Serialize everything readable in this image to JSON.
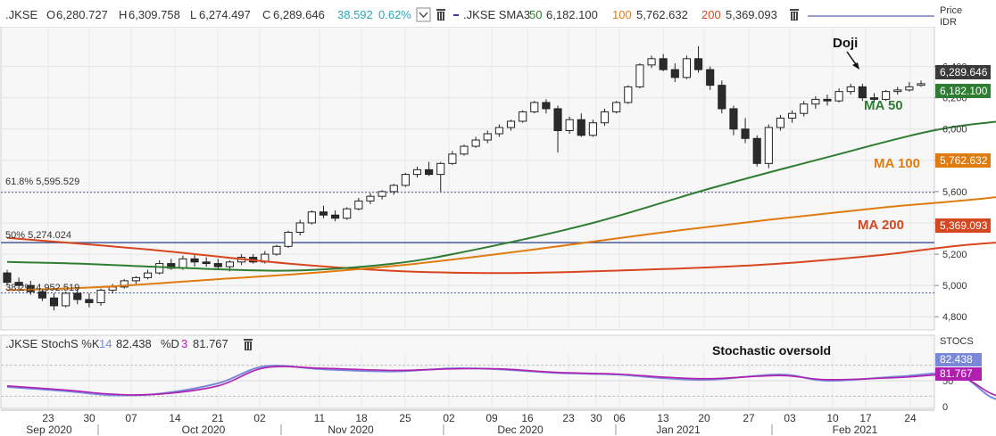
{
  "price_header": {
    "symbol": ".JKSE",
    "o_label": "O",
    "o_value": "6,280.727",
    "h_label": "H",
    "h_value": "6,309.758",
    "l_label": "L",
    "l_value": "6,274.497",
    "c_label": "C",
    "c_value": "6,289.646",
    "change": "38.592",
    "change_pct": "0.62%",
    "sma_label": ".JKSE SMA3",
    "sma50_period": "50",
    "sma50_value": "6,182.100",
    "sma100_period": "100",
    "sma100_value": "5,762.632",
    "sma200_period": "200",
    "sma200_value": "5,369.093"
  },
  "stoch_header": {
    "label": ".JKSE StochS %K",
    "k_period": "14",
    "k_value": "82.438",
    "d_label": "%D",
    "d_period": "3",
    "d_value": "81.767"
  },
  "axis": {
    "price_title": "Price",
    "price_unit": "IDR",
    "price_ticks": [
      "6,400",
      "6,200",
      "6,000",
      "5,800",
      "5,600",
      "5,400",
      "5,200",
      "5,000",
      "4,800"
    ],
    "stoch_title": "STOCS",
    "stoch_ticks": [
      "50",
      "0"
    ],
    "day_ticks": [
      "23",
      "30",
      "07",
      "14",
      "21",
      "02",
      "11",
      "18",
      "25",
      "02",
      "09",
      "16",
      "23",
      "30",
      "06",
      "13",
      "20",
      "27",
      "03",
      "10",
      "17",
      "24"
    ],
    "month_ticks": [
      "Sep 2020",
      "Oct 2020",
      "Nov 2020",
      "Dec 2020",
      "Jan 2021",
      "Feb 2021"
    ]
  },
  "value_tags": {
    "close": "6,289.646",
    "ma50": "6,182.100",
    "ma100": "5,762.632",
    "ma200": "5,369.093",
    "k": "82.438",
    "d": "81.767"
  },
  "annotations": {
    "doji": "Doji",
    "ma50": "MA 50",
    "ma100": "MA 100",
    "ma200": "MA 200",
    "stoch": "Stochastic oversold",
    "fib618": "61.8%  5,595.529",
    "fib50": "50%   5,274.024",
    "fib382": "38.2%  4,952.519"
  },
  "colors": {
    "ma50": "#2e7d32",
    "ma100": "#e07b10",
    "ma200": "#d6471f",
    "fib": "#4a5a9a",
    "stochK": "#7b88d9",
    "stochD": "#b01fb0",
    "close_tag": "#3a3a3a",
    "change": "#2aa7b5"
  },
  "chart_data": {
    "type": "candlestick",
    "y_range": [
      4750,
      6620
    ],
    "stoch_range": [
      0,
      100
    ],
    "fib_levels": [
      5595.529,
      5274.024,
      4952.519
    ],
    "candles": [
      [
        5080,
        5100,
        5000,
        5020
      ],
      [
        5020,
        5050,
        4960,
        5000
      ],
      [
        5000,
        5030,
        4940,
        4960
      ],
      [
        4960,
        4980,
        4900,
        4920
      ],
      [
        4920,
        4950,
        4840,
        4870
      ],
      [
        4870,
        4960,
        4860,
        4950
      ],
      [
        4950,
        4980,
        4880,
        4910
      ],
      [
        4910,
        4950,
        4860,
        4890
      ],
      [
        4890,
        4980,
        4870,
        4970
      ],
      [
        4970,
        5010,
        4950,
        4990
      ],
      [
        4990,
        5040,
        4980,
        5030
      ],
      [
        5030,
        5060,
        5010,
        5050
      ],
      [
        5050,
        5100,
        5040,
        5080
      ],
      [
        5080,
        5160,
        5070,
        5140
      ],
      [
        5140,
        5170,
        5100,
        5110
      ],
      [
        5110,
        5190,
        5100,
        5170
      ],
      [
        5170,
        5200,
        5120,
        5150
      ],
      [
        5150,
        5180,
        5120,
        5140
      ],
      [
        5140,
        5170,
        5100,
        5120
      ],
      [
        5120,
        5160,
        5090,
        5150
      ],
      [
        5150,
        5200,
        5130,
        5180
      ],
      [
        5180,
        5200,
        5140,
        5150
      ],
      [
        5150,
        5220,
        5140,
        5200
      ],
      [
        5200,
        5260,
        5190,
        5250
      ],
      [
        5250,
        5350,
        5240,
        5340
      ],
      [
        5340,
        5420,
        5320,
        5400
      ],
      [
        5400,
        5480,
        5390,
        5470
      ],
      [
        5470,
        5510,
        5430,
        5450
      ],
      [
        5450,
        5480,
        5410,
        5430
      ],
      [
        5430,
        5500,
        5420,
        5490
      ],
      [
        5490,
        5560,
        5480,
        5540
      ],
      [
        5540,
        5590,
        5520,
        5570
      ],
      [
        5570,
        5610,
        5550,
        5600
      ],
      [
        5600,
        5650,
        5580,
        5640
      ],
      [
        5640,
        5720,
        5630,
        5710
      ],
      [
        5710,
        5760,
        5690,
        5740
      ],
      [
        5740,
        5790,
        5700,
        5710
      ],
      [
        5710,
        5790,
        5600,
        5780
      ],
      [
        5780,
        5860,
        5770,
        5840
      ],
      [
        5840,
        5900,
        5830,
        5890
      ],
      [
        5890,
        5950,
        5880,
        5930
      ],
      [
        5930,
        5990,
        5910,
        5970
      ],
      [
        5970,
        6030,
        5950,
        6010
      ],
      [
        6010,
        6060,
        5990,
        6050
      ],
      [
        6050,
        6120,
        6040,
        6110
      ],
      [
        6110,
        6180,
        6100,
        6170
      ],
      [
        6170,
        6190,
        6100,
        6130
      ],
      [
        6130,
        6150,
        5850,
        5990
      ],
      [
        5990,
        6080,
        5970,
        6060
      ],
      [
        6060,
        6100,
        5950,
        5960
      ],
      [
        5960,
        6060,
        5950,
        6040
      ],
      [
        6040,
        6130,
        6020,
        6110
      ],
      [
        6110,
        6180,
        6100,
        6170
      ],
      [
        6170,
        6280,
        6160,
        6270
      ],
      [
        6270,
        6420,
        6260,
        6410
      ],
      [
        6410,
        6470,
        6390,
        6450
      ],
      [
        6450,
        6480,
        6370,
        6380
      ],
      [
        6380,
        6420,
        6300,
        6330
      ],
      [
        6330,
        6470,
        6320,
        6450
      ],
      [
        6450,
        6530,
        6360,
        6380
      ],
      [
        6380,
        6400,
        6250,
        6280
      ],
      [
        6280,
        6310,
        6100,
        6130
      ],
      [
        6130,
        6150,
        5960,
        6000
      ],
      [
        6000,
        6070,
        5910,
        5940
      ],
      [
        5940,
        5960,
        5760,
        5780
      ],
      [
        5780,
        6030,
        5750,
        6010
      ],
      [
        6010,
        6090,
        5990,
        6070
      ],
      [
        6070,
        6120,
        6040,
        6100
      ],
      [
        6100,
        6180,
        6080,
        6160
      ],
      [
        6160,
        6210,
        6130,
        6190
      ],
      [
        6190,
        6220,
        6150,
        6180
      ],
      [
        6180,
        6260,
        6170,
        6240
      ],
      [
        6240,
        6290,
        6220,
        6270
      ],
      [
        6270,
        6290,
        6180,
        6200
      ],
      [
        6200,
        6230,
        6170,
        6190
      ],
      [
        6190,
        6250,
        6180,
        6240
      ],
      [
        6240,
        6270,
        6220,
        6250
      ],
      [
        6250,
        6300,
        6240,
        6270
      ],
      [
        6280,
        6310,
        6270,
        6290
      ]
    ],
    "ma50": [
      [
        0,
        5150
      ],
      [
        6,
        5140
      ],
      [
        14,
        5115
      ],
      [
        24,
        5095
      ],
      [
        33,
        5140
      ],
      [
        40,
        5230
      ],
      [
        50,
        5400
      ],
      [
        60,
        5620
      ],
      [
        70,
        5820
      ],
      [
        79,
        5990
      ],
      [
        86,
        6060
      ],
      [
        98,
        6150
      ],
      [
        104,
        6182
      ]
    ],
    "ma100": [
      [
        0,
        4970
      ],
      [
        8,
        4990
      ],
      [
        18,
        5040
      ],
      [
        26,
        5080
      ],
      [
        35,
        5140
      ],
      [
        45,
        5230
      ],
      [
        55,
        5330
      ],
      [
        65,
        5420
      ],
      [
        75,
        5500
      ],
      [
        85,
        5570
      ],
      [
        95,
        5690
      ],
      [
        104,
        5763
      ]
    ],
    "ma200": [
      [
        0,
        5305
      ],
      [
        12,
        5230
      ],
      [
        24,
        5140
      ],
      [
        34,
        5090
      ],
      [
        44,
        5080
      ],
      [
        54,
        5100
      ],
      [
        64,
        5130
      ],
      [
        74,
        5190
      ],
      [
        82,
        5260
      ],
      [
        92,
        5310
      ],
      [
        104,
        5369
      ]
    ],
    "stoch_k": [
      [
        0,
        38
      ],
      [
        5,
        30
      ],
      [
        9,
        22
      ],
      [
        13,
        25
      ],
      [
        18,
        45
      ],
      [
        22,
        78
      ],
      [
        27,
        72
      ],
      [
        33,
        68
      ],
      [
        38,
        74
      ],
      [
        42,
        72
      ],
      [
        47,
        65
      ],
      [
        52,
        62
      ],
      [
        56,
        55
      ],
      [
        60,
        52
      ],
      [
        66,
        62
      ],
      [
        70,
        50
      ],
      [
        76,
        58
      ],
      [
        81,
        62
      ],
      [
        84,
        18
      ],
      [
        86,
        12
      ],
      [
        90,
        32
      ],
      [
        95,
        62
      ],
      [
        100,
        82
      ],
      [
        104,
        82
      ]
    ],
    "stoch_d": [
      [
        0,
        40
      ],
      [
        5,
        32
      ],
      [
        9,
        24
      ],
      [
        13,
        24
      ],
      [
        18,
        40
      ],
      [
        22,
        75
      ],
      [
        27,
        74
      ],
      [
        33,
        70
      ],
      [
        38,
        73
      ],
      [
        42,
        73
      ],
      [
        47,
        66
      ],
      [
        52,
        63
      ],
      [
        56,
        57
      ],
      [
        60,
        54
      ],
      [
        66,
        60
      ],
      [
        70,
        52
      ],
      [
        76,
        56
      ],
      [
        81,
        60
      ],
      [
        84,
        25
      ],
      [
        86,
        15
      ],
      [
        90,
        28
      ],
      [
        95,
        58
      ],
      [
        100,
        80
      ],
      [
        104,
        82
      ]
    ]
  }
}
